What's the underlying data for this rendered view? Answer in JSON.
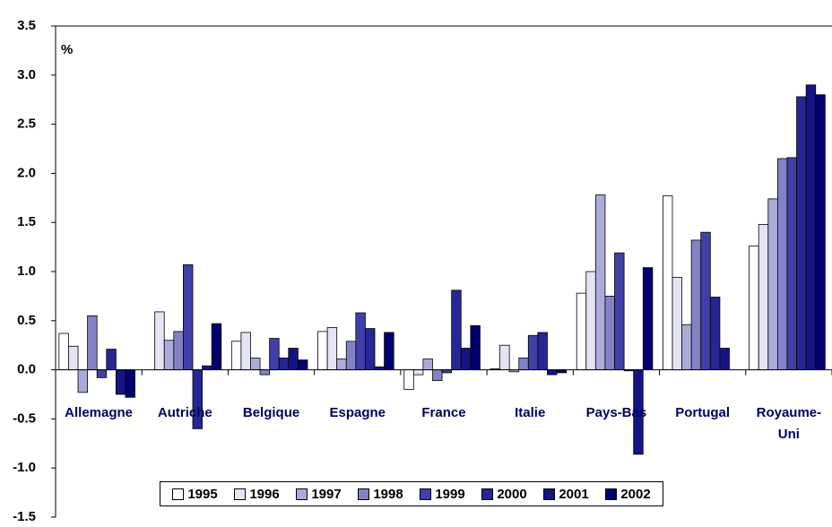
{
  "chart_data": {
    "type": "bar",
    "y_label": "%",
    "categories": [
      "Allemagne",
      "Autriche",
      "Belgique",
      "Espagne",
      "France",
      "Italie",
      "Pays-Bas",
      "Portugal",
      "Royaume-Uni"
    ],
    "series": [
      {
        "name": "1995",
        "color": "#ffffff",
        "values": [
          0.37,
          0.0,
          0.29,
          0.39,
          -0.2,
          0.01,
          0.78,
          1.77,
          1.26
        ]
      },
      {
        "name": "1996",
        "color": "#e4e4f4",
        "values": [
          0.24,
          0.59,
          0.38,
          0.43,
          -0.05,
          0.25,
          1.0,
          0.94,
          1.48
        ]
      },
      {
        "name": "1997",
        "color": "#ababd9",
        "values": [
          -0.23,
          0.3,
          0.12,
          0.11,
          0.11,
          -0.02,
          1.78,
          0.46,
          1.74
        ]
      },
      {
        "name": "1998",
        "color": "#8282c8",
        "values": [
          0.55,
          0.39,
          -0.05,
          0.29,
          -0.11,
          0.12,
          0.75,
          1.32,
          2.15
        ]
      },
      {
        "name": "1999",
        "color": "#4040a8",
        "values": [
          -0.08,
          1.07,
          0.32,
          0.58,
          -0.03,
          0.35,
          1.19,
          1.4,
          2.16
        ]
      },
      {
        "name": "2000",
        "color": "#262694",
        "values": [
          0.21,
          -0.6,
          0.12,
          0.42,
          0.81,
          0.38,
          -0.01,
          0.74,
          2.78
        ]
      },
      {
        "name": "2001",
        "color": "#141482",
        "values": [
          -0.25,
          0.04,
          0.22,
          0.03,
          0.22,
          -0.05,
          -0.86,
          0.22,
          2.9
        ]
      },
      {
        "name": "2002",
        "color": "#000070",
        "values": [
          -0.28,
          0.47,
          0.1,
          0.38,
          0.45,
          -0.03,
          1.04,
          0.0,
          2.8
        ]
      }
    ],
    "ylim": [
      -1.5,
      3.5
    ],
    "yticks": [
      {
        "value": -1.5,
        "label": "-1.5"
      },
      {
        "value": -1.0,
        "label": "-1.0"
      },
      {
        "value": -0.5,
        "label": "-0.5"
      },
      {
        "value": 0,
        "label": "0.0"
      },
      {
        "value": 0.5,
        "label": "0.5"
      },
      {
        "value": 1.0,
        "label": "1.0"
      },
      {
        "value": 1.5,
        "label": "1.5"
      },
      {
        "value": 2.0,
        "label": "2.0"
      },
      {
        "value": 2.5,
        "label": "2.5"
      },
      {
        "value": 3.0,
        "label": "3.0"
      },
      {
        "value": 3.5,
        "label": "3.5"
      }
    ],
    "grid": false
  }
}
